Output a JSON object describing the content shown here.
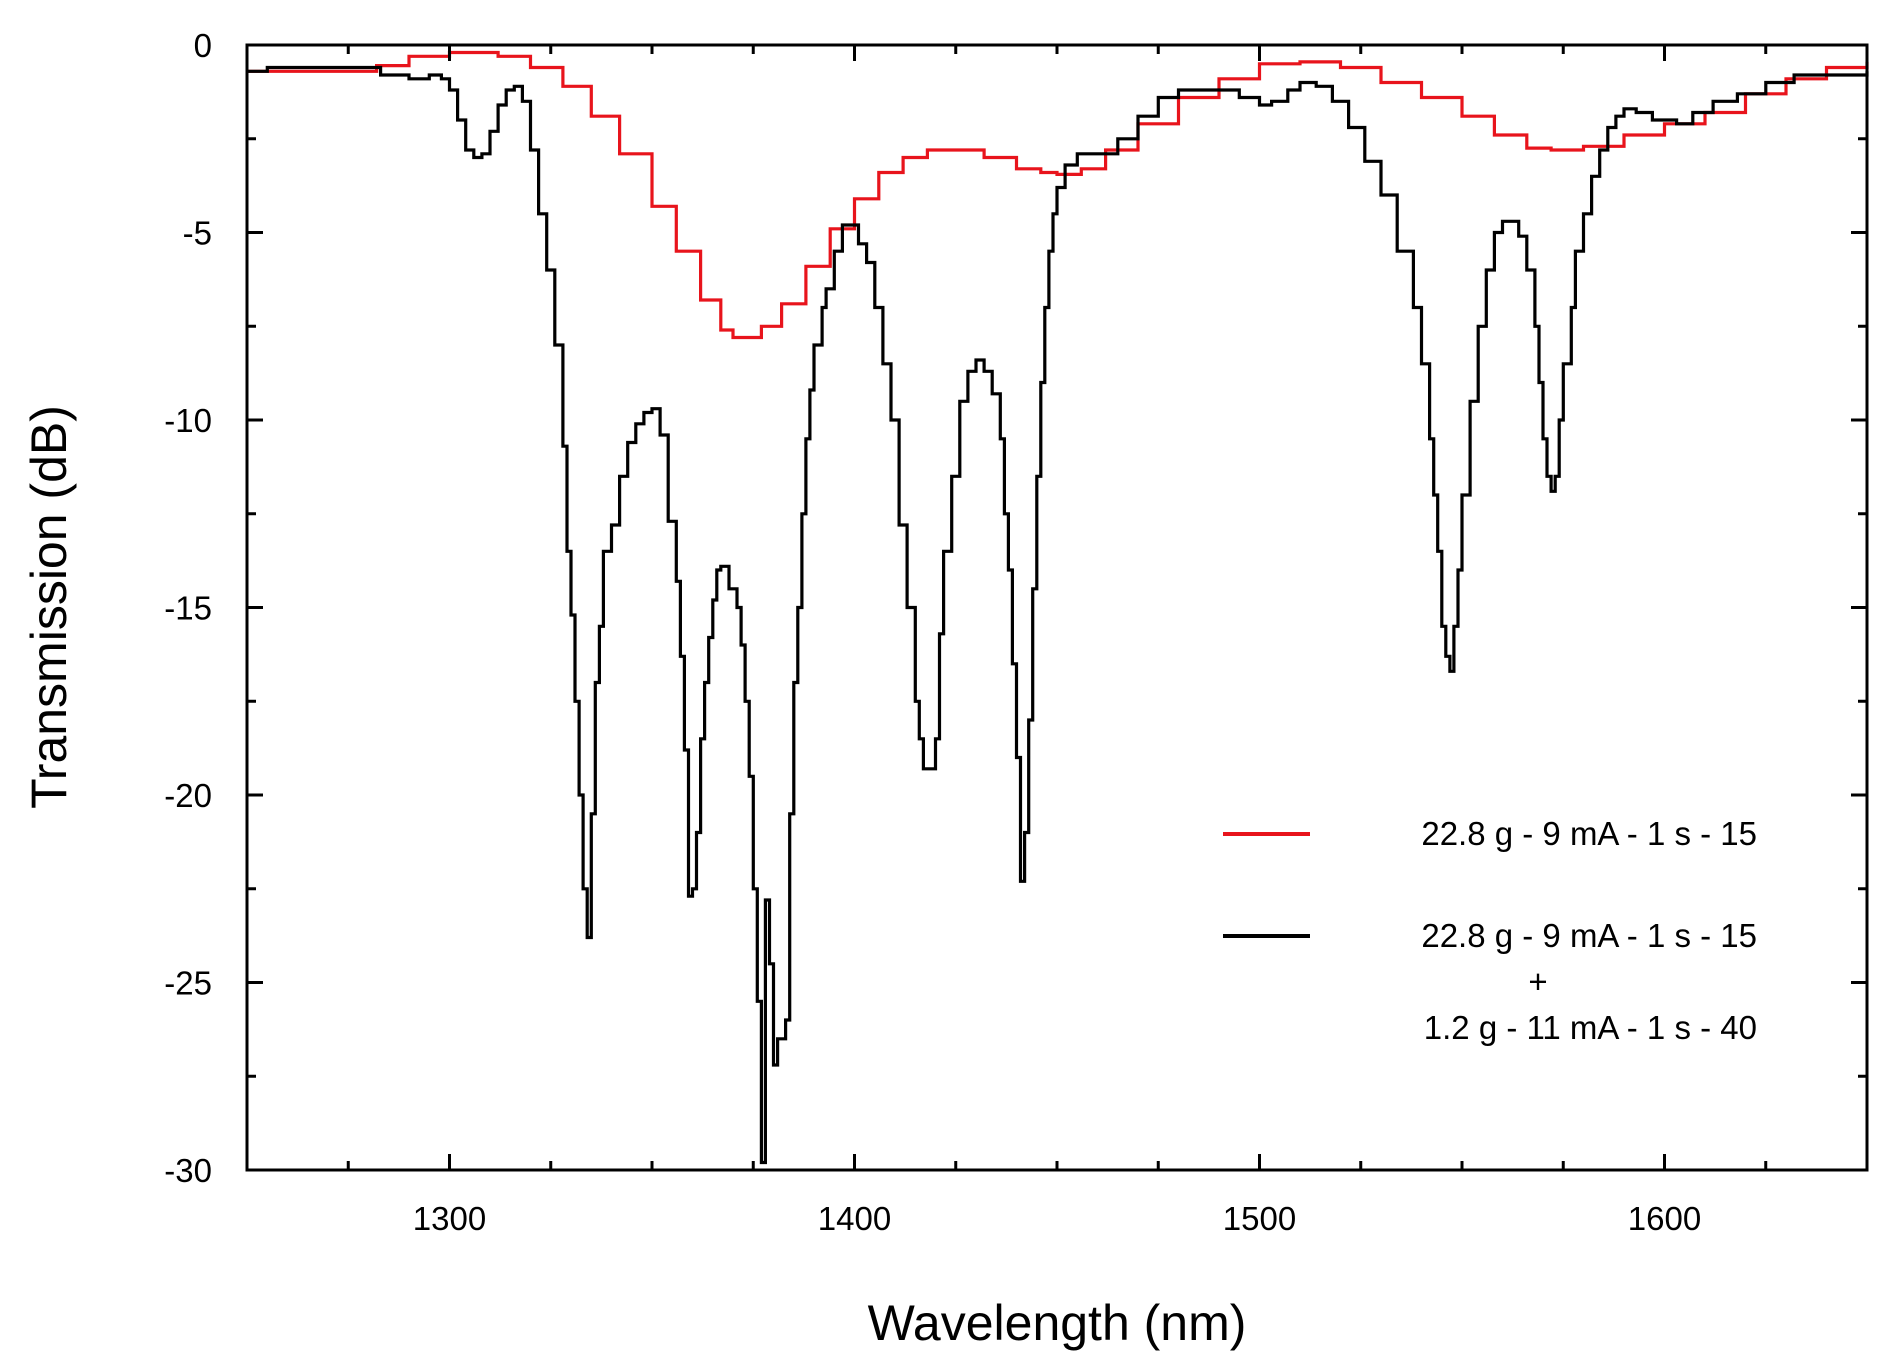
{
  "chart_data": {
    "type": "line",
    "title": "",
    "xlabel": "Wavelength (nm)",
    "ylabel": "Transmission (dB)",
    "xlim": [
      1250,
      1650
    ],
    "ylim": [
      -30,
      0
    ],
    "xticks": [
      1300,
      1400,
      1500,
      1600
    ],
    "xtick_labels": [
      "1300",
      "1400",
      "1500",
      "1600"
    ],
    "yticks": [
      0,
      -5,
      -10,
      -15,
      -20,
      -25,
      -30
    ],
    "ytick_labels": [
      "0",
      "-5",
      "-10",
      "-15",
      "-20",
      "-25",
      "-30"
    ],
    "grid": false,
    "legend_position": "lower-right",
    "series": [
      {
        "name": "22.8 g - 9 mA - 1 s - 15",
        "color": "#e8141c",
        "points": [
          [
            1250,
            -0.7
          ],
          [
            1270,
            -0.7
          ],
          [
            1282,
            -0.55
          ],
          [
            1290,
            -0.3
          ],
          [
            1300,
            -0.2
          ],
          [
            1307,
            -0.2
          ],
          [
            1312,
            -0.3
          ],
          [
            1320,
            -0.6
          ],
          [
            1328,
            -1.1
          ],
          [
            1335,
            -1.9
          ],
          [
            1342,
            -2.9
          ],
          [
            1350,
            -4.3
          ],
          [
            1356,
            -5.5
          ],
          [
            1362,
            -6.8
          ],
          [
            1367,
            -7.6
          ],
          [
            1370,
            -7.8
          ],
          [
            1373,
            -7.8
          ],
          [
            1377,
            -7.5
          ],
          [
            1382,
            -6.9
          ],
          [
            1388,
            -5.9
          ],
          [
            1394,
            -4.9
          ],
          [
            1400,
            -4.1
          ],
          [
            1406,
            -3.4
          ],
          [
            1412,
            -3.0
          ],
          [
            1418,
            -2.8
          ],
          [
            1425,
            -2.8
          ],
          [
            1432,
            -3.0
          ],
          [
            1440,
            -3.3
          ],
          [
            1446,
            -3.4
          ],
          [
            1450,
            -3.45
          ],
          [
            1456,
            -3.3
          ],
          [
            1462,
            -2.8
          ],
          [
            1470,
            -2.1
          ],
          [
            1480,
            -1.4
          ],
          [
            1490,
            -0.9
          ],
          [
            1500,
            -0.5
          ],
          [
            1510,
            -0.45
          ],
          [
            1520,
            -0.6
          ],
          [
            1530,
            -1.0
          ],
          [
            1540,
            -1.4
          ],
          [
            1550,
            -1.9
          ],
          [
            1558,
            -2.4
          ],
          [
            1566,
            -2.75
          ],
          [
            1572,
            -2.8
          ],
          [
            1580,
            -2.7
          ],
          [
            1590,
            -2.4
          ],
          [
            1600,
            -2.1
          ],
          [
            1610,
            -1.8
          ],
          [
            1620,
            -1.3
          ],
          [
            1630,
            -0.9
          ],
          [
            1640,
            -0.6
          ],
          [
            1650,
            -0.45
          ]
        ]
      },
      {
        "name": "22.8 g - 9 mA - 1 s - 15\n+\n1.2 g - 11 mA - 1 s - 40",
        "color": "#000000",
        "points": [
          [
            1250,
            -0.7
          ],
          [
            1255,
            -0.6
          ],
          [
            1265,
            -0.6
          ],
          [
            1275,
            -0.6
          ],
          [
            1283,
            -0.8
          ],
          [
            1290,
            -0.9
          ],
          [
            1295,
            -0.8
          ],
          [
            1298,
            -0.9
          ],
          [
            1300,
            -1.2
          ],
          [
            1302,
            -2.0
          ],
          [
            1304,
            -2.8
          ],
          [
            1306,
            -3.0
          ],
          [
            1308,
            -2.9
          ],
          [
            1310,
            -2.3
          ],
          [
            1312,
            -1.6
          ],
          [
            1314,
            -1.2
          ],
          [
            1316,
            -1.1
          ],
          [
            1318,
            -1.5
          ],
          [
            1320,
            -2.8
          ],
          [
            1322,
            -4.5
          ],
          [
            1324,
            -6.0
          ],
          [
            1326,
            -8.0
          ],
          [
            1328,
            -10.7
          ],
          [
            1329,
            -13.5
          ],
          [
            1330,
            -15.2
          ],
          [
            1331,
            -17.5
          ],
          [
            1332,
            -20.0
          ],
          [
            1333,
            -22.5
          ],
          [
            1334,
            -23.8
          ],
          [
            1335,
            -20.5
          ],
          [
            1336,
            -17.0
          ],
          [
            1337,
            -15.5
          ],
          [
            1338,
            -13.5
          ],
          [
            1340,
            -12.8
          ],
          [
            1342,
            -11.5
          ],
          [
            1344,
            -10.6
          ],
          [
            1346,
            -10.1
          ],
          [
            1348,
            -9.8
          ],
          [
            1350,
            -9.7
          ],
          [
            1352,
            -10.4
          ],
          [
            1354,
            -12.7
          ],
          [
            1356,
            -14.3
          ],
          [
            1357,
            -16.3
          ],
          [
            1358,
            -18.8
          ],
          [
            1359,
            -22.7
          ],
          [
            1360,
            -22.5
          ],
          [
            1361,
            -21.0
          ],
          [
            1362,
            -18.5
          ],
          [
            1363,
            -17.0
          ],
          [
            1364,
            -15.8
          ],
          [
            1365,
            -14.8
          ],
          [
            1366,
            -14.0
          ],
          [
            1367,
            -13.9
          ],
          [
            1369,
            -14.5
          ],
          [
            1371,
            -15.0
          ],
          [
            1372,
            -16.0
          ],
          [
            1373,
            -17.5
          ],
          [
            1374,
            -19.5
          ],
          [
            1375,
            -22.5
          ],
          [
            1376,
            -25.5
          ],
          [
            1377,
            -29.8
          ],
          [
            1378,
            -22.8
          ],
          [
            1379,
            -24.5
          ],
          [
            1380,
            -27.2
          ],
          [
            1381,
            -26.5
          ],
          [
            1383,
            -26.0
          ],
          [
            1384,
            -20.5
          ],
          [
            1385,
            -17.0
          ],
          [
            1386,
            -15.0
          ],
          [
            1387,
            -12.5
          ],
          [
            1388,
            -10.5
          ],
          [
            1389,
            -9.2
          ],
          [
            1390,
            -8.0
          ],
          [
            1392,
            -7.0
          ],
          [
            1393,
            -6.5
          ],
          [
            1395,
            -5.5
          ],
          [
            1397,
            -4.8
          ],
          [
            1399,
            -4.8
          ],
          [
            1401,
            -5.3
          ],
          [
            1403,
            -5.8
          ],
          [
            1405,
            -7.0
          ],
          [
            1407,
            -8.5
          ],
          [
            1409,
            -10.0
          ],
          [
            1411,
            -12.8
          ],
          [
            1413,
            -15.0
          ],
          [
            1415,
            -17.5
          ],
          [
            1416,
            -18.5
          ],
          [
            1417,
            -19.3
          ],
          [
            1419,
            -19.3
          ],
          [
            1420,
            -18.5
          ],
          [
            1421,
            -15.7
          ],
          [
            1422,
            -13.5
          ],
          [
            1424,
            -11.5
          ],
          [
            1426,
            -9.5
          ],
          [
            1428,
            -8.7
          ],
          [
            1430,
            -8.4
          ],
          [
            1432,
            -8.7
          ],
          [
            1434,
            -9.3
          ],
          [
            1436,
            -10.5
          ],
          [
            1437,
            -12.5
          ],
          [
            1438,
            -14.0
          ],
          [
            1439,
            -16.5
          ],
          [
            1440,
            -19.0
          ],
          [
            1441,
            -22.3
          ],
          [
            1442,
            -21.0
          ],
          [
            1443,
            -18.0
          ],
          [
            1444,
            -14.5
          ],
          [
            1445,
            -11.5
          ],
          [
            1446,
            -9.0
          ],
          [
            1447,
            -7.0
          ],
          [
            1448,
            -5.5
          ],
          [
            1449,
            -4.5
          ],
          [
            1450,
            -3.8
          ],
          [
            1452,
            -3.2
          ],
          [
            1455,
            -2.9
          ],
          [
            1460,
            -2.9
          ],
          [
            1465,
            -2.5
          ],
          [
            1470,
            -1.9
          ],
          [
            1475,
            -1.4
          ],
          [
            1480,
            -1.2
          ],
          [
            1490,
            -1.2
          ],
          [
            1495,
            -1.4
          ],
          [
            1500,
            -1.6
          ],
          [
            1503,
            -1.5
          ],
          [
            1507,
            -1.2
          ],
          [
            1510,
            -1.0
          ],
          [
            1514,
            -1.1
          ],
          [
            1518,
            -1.5
          ],
          [
            1522,
            -2.2
          ],
          [
            1526,
            -3.1
          ],
          [
            1530,
            -4.0
          ],
          [
            1534,
            -5.5
          ],
          [
            1538,
            -7.0
          ],
          [
            1540,
            -8.5
          ],
          [
            1542,
            -10.5
          ],
          [
            1543,
            -12.0
          ],
          [
            1544,
            -13.5
          ],
          [
            1545,
            -15.5
          ],
          [
            1546,
            -16.3
          ],
          [
            1547,
            -16.7
          ],
          [
            1548,
            -15.5
          ],
          [
            1549,
            -14.0
          ],
          [
            1550,
            -12.0
          ],
          [
            1552,
            -9.5
          ],
          [
            1554,
            -7.5
          ],
          [
            1556,
            -6.0
          ],
          [
            1558,
            -5.0
          ],
          [
            1560,
            -4.7
          ],
          [
            1562,
            -4.7
          ],
          [
            1564,
            -5.1
          ],
          [
            1566,
            -6.0
          ],
          [
            1568,
            -7.5
          ],
          [
            1569,
            -9.0
          ],
          [
            1570,
            -10.5
          ],
          [
            1571,
            -11.5
          ],
          [
            1572,
            -11.9
          ],
          [
            1573,
            -11.5
          ],
          [
            1574,
            -10.0
          ],
          [
            1575,
            -8.5
          ],
          [
            1577,
            -7.0
          ],
          [
            1578,
            -5.5
          ],
          [
            1580,
            -4.5
          ],
          [
            1582,
            -3.5
          ],
          [
            1584,
            -2.8
          ],
          [
            1586,
            -2.2
          ],
          [
            1588,
            -1.9
          ],
          [
            1590,
            -1.7
          ],
          [
            1593,
            -1.8
          ],
          [
            1597,
            -2.0
          ],
          [
            1600,
            -2.0
          ],
          [
            1603,
            -2.1
          ],
          [
            1607,
            -1.8
          ],
          [
            1612,
            -1.5
          ],
          [
            1618,
            -1.3
          ],
          [
            1625,
            -1.0
          ],
          [
            1632,
            -0.8
          ],
          [
            1640,
            -0.8
          ],
          [
            1650,
            -0.7
          ]
        ]
      }
    ],
    "legend": [
      {
        "lines": [
          "22.8 g - 9 mA - 1 s - 15"
        ],
        "color": "#e8141c"
      },
      {
        "lines": [
          "22.8 g - 9 mA - 1 s - 15",
          "+",
          "1.2 g - 11 mA - 1 s - 40"
        ],
        "color": "#000000"
      }
    ]
  }
}
